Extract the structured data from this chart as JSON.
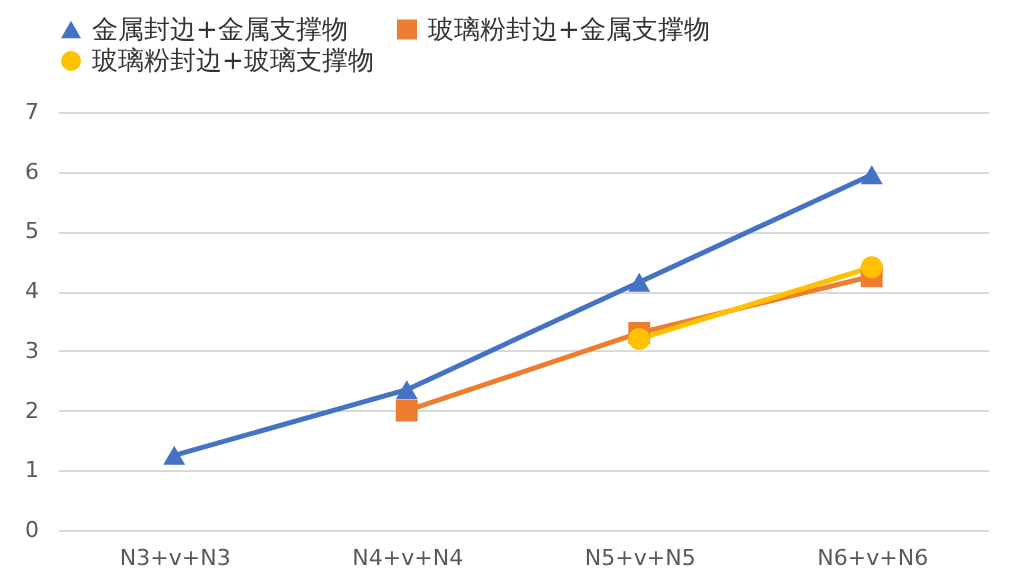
{
  "chart_data": {
    "type": "line",
    "categories": [
      "N3+v+N3",
      "N4+v+N4",
      "N5+v+N5",
      "N6+v+N6"
    ],
    "series": [
      {
        "name": "金属封边+金属支撑物",
        "color": "#4472c4",
        "marker": "triangle",
        "values": [
          1.25,
          2.35,
          4.15,
          5.95
        ]
      },
      {
        "name": "玻璃粉封边+金属支撑物",
        "color": "#ed7d31",
        "marker": "square",
        "values": [
          null,
          2.0,
          3.3,
          4.25
        ]
      },
      {
        "name": "玻璃粉封边+玻璃支撑物",
        "color": "#ffc000",
        "marker": "circle",
        "values": [
          null,
          null,
          3.2,
          4.4
        ]
      }
    ],
    "ylim": [
      0,
      7
    ],
    "yticks": [
      0,
      1,
      2,
      3,
      4,
      5,
      6,
      7
    ],
    "grid": "y",
    "legend": "top"
  }
}
